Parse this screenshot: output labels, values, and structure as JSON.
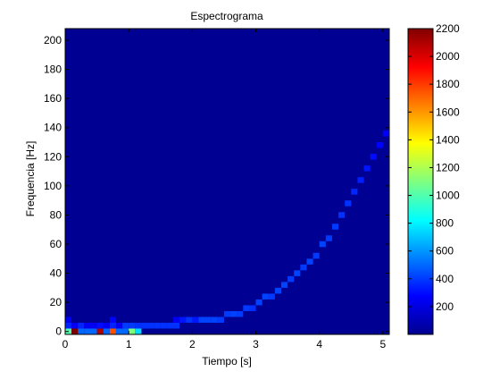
{
  "chart_data": {
    "type": "heatmap",
    "title": "Espectrograma",
    "xlabel": "Tiempo [s]",
    "ylabel": "Frequencia [Hz]",
    "xlim": [
      0,
      5.1
    ],
    "ylim": [
      -2,
      208
    ],
    "x_ticks": [
      0,
      1,
      2,
      3,
      4,
      5
    ],
    "y_ticks": [
      0,
      20,
      40,
      60,
      80,
      100,
      120,
      140,
      160,
      180,
      200
    ],
    "colorbar": {
      "min": 0,
      "max": 2200,
      "ticks": [
        200,
        400,
        600,
        800,
        1000,
        1200,
        1400,
        1600,
        1800,
        2000,
        2200
      ],
      "colormap": "jet"
    },
    "background_value": 40,
    "time_bin": 0.1,
    "freq_bin": 4,
    "ridge": [
      {
        "t": 0.05,
        "f": 4,
        "v": 350
      },
      {
        "t": 0.15,
        "f": 4,
        "v": 250
      },
      {
        "t": 0.25,
        "f": 4,
        "v": 350
      },
      {
        "t": 0.35,
        "f": 4,
        "v": 250
      },
      {
        "t": 0.45,
        "f": 4,
        "v": 250
      },
      {
        "t": 0.55,
        "f": 4,
        "v": 300
      },
      {
        "t": 0.65,
        "f": 4,
        "v": 250
      },
      {
        "t": 0.75,
        "f": 4,
        "v": 350
      },
      {
        "t": 0.85,
        "f": 4,
        "v": 250
      },
      {
        "t": 0.95,
        "f": 4,
        "v": 400
      },
      {
        "t": 1.05,
        "f": 4,
        "v": 400
      },
      {
        "t": 1.15,
        "f": 4,
        "v": 380
      },
      {
        "t": 1.25,
        "f": 4,
        "v": 380
      },
      {
        "t": 1.35,
        "f": 4,
        "v": 380
      },
      {
        "t": 1.45,
        "f": 4,
        "v": 380
      },
      {
        "t": 1.55,
        "f": 4,
        "v": 380
      },
      {
        "t": 1.65,
        "f": 4,
        "v": 380
      },
      {
        "t": 1.75,
        "f": 4,
        "v": 380
      },
      {
        "t": 1.85,
        "f": 8,
        "v": 320
      },
      {
        "t": 1.95,
        "f": 8,
        "v": 380
      },
      {
        "t": 2.05,
        "f": 8,
        "v": 320
      },
      {
        "t": 2.15,
        "f": 8,
        "v": 420
      },
      {
        "t": 2.25,
        "f": 8,
        "v": 420
      },
      {
        "t": 2.35,
        "f": 8,
        "v": 420
      },
      {
        "t": 2.45,
        "f": 8,
        "v": 400
      },
      {
        "t": 2.55,
        "f": 12,
        "v": 400
      },
      {
        "t": 2.65,
        "f": 12,
        "v": 420
      },
      {
        "t": 2.75,
        "f": 12,
        "v": 400
      },
      {
        "t": 2.85,
        "f": 16,
        "v": 400
      },
      {
        "t": 2.95,
        "f": 16,
        "v": 380
      },
      {
        "t": 3.05,
        "f": 20,
        "v": 420
      },
      {
        "t": 3.15,
        "f": 24,
        "v": 420
      },
      {
        "t": 3.25,
        "f": 24,
        "v": 400
      },
      {
        "t": 3.35,
        "f": 28,
        "v": 420
      },
      {
        "t": 3.45,
        "f": 32,
        "v": 420
      },
      {
        "t": 3.55,
        "f": 36,
        "v": 400
      },
      {
        "t": 3.65,
        "f": 40,
        "v": 420
      },
      {
        "t": 3.75,
        "f": 44,
        "v": 400
      },
      {
        "t": 3.85,
        "f": 48,
        "v": 420
      },
      {
        "t": 3.95,
        "f": 52,
        "v": 400
      },
      {
        "t": 4.05,
        "f": 60,
        "v": 420
      },
      {
        "t": 4.15,
        "f": 64,
        "v": 400
      },
      {
        "t": 4.25,
        "f": 72,
        "v": 400
      },
      {
        "t": 4.35,
        "f": 80,
        "v": 380
      },
      {
        "t": 4.45,
        "f": 88,
        "v": 380
      },
      {
        "t": 4.55,
        "f": 96,
        "v": 360
      },
      {
        "t": 4.65,
        "f": 104,
        "v": 340
      },
      {
        "t": 4.75,
        "f": 112,
        "v": 320
      },
      {
        "t": 4.85,
        "f": 120,
        "v": 300
      },
      {
        "t": 4.95,
        "f": 128,
        "v": 280
      },
      {
        "t": 5.05,
        "f": 136,
        "v": 260
      }
    ],
    "extra_cells": [
      {
        "t": 0.05,
        "f": 0,
        "v": 1000
      },
      {
        "t": 0.15,
        "f": 0,
        "v": 2200
      },
      {
        "t": 0.25,
        "f": 0,
        "v": 500
      },
      {
        "t": 0.35,
        "f": 0,
        "v": 500
      },
      {
        "t": 0.45,
        "f": 0,
        "v": 500
      },
      {
        "t": 0.55,
        "f": 0,
        "v": 2100
      },
      {
        "t": 0.65,
        "f": 0,
        "v": 500
      },
      {
        "t": 0.75,
        "f": 0,
        "v": 1750
      },
      {
        "t": 0.85,
        "f": 0,
        "v": 500
      },
      {
        "t": 0.95,
        "f": 0,
        "v": 500
      },
      {
        "t": 1.05,
        "f": 0,
        "v": 1100
      },
      {
        "t": 1.15,
        "f": 0,
        "v": 750
      },
      {
        "t": 0.05,
        "f": 8,
        "v": 250
      },
      {
        "t": 0.75,
        "f": 8,
        "v": 280
      },
      {
        "t": 1.75,
        "f": 8,
        "v": 250
      }
    ]
  }
}
